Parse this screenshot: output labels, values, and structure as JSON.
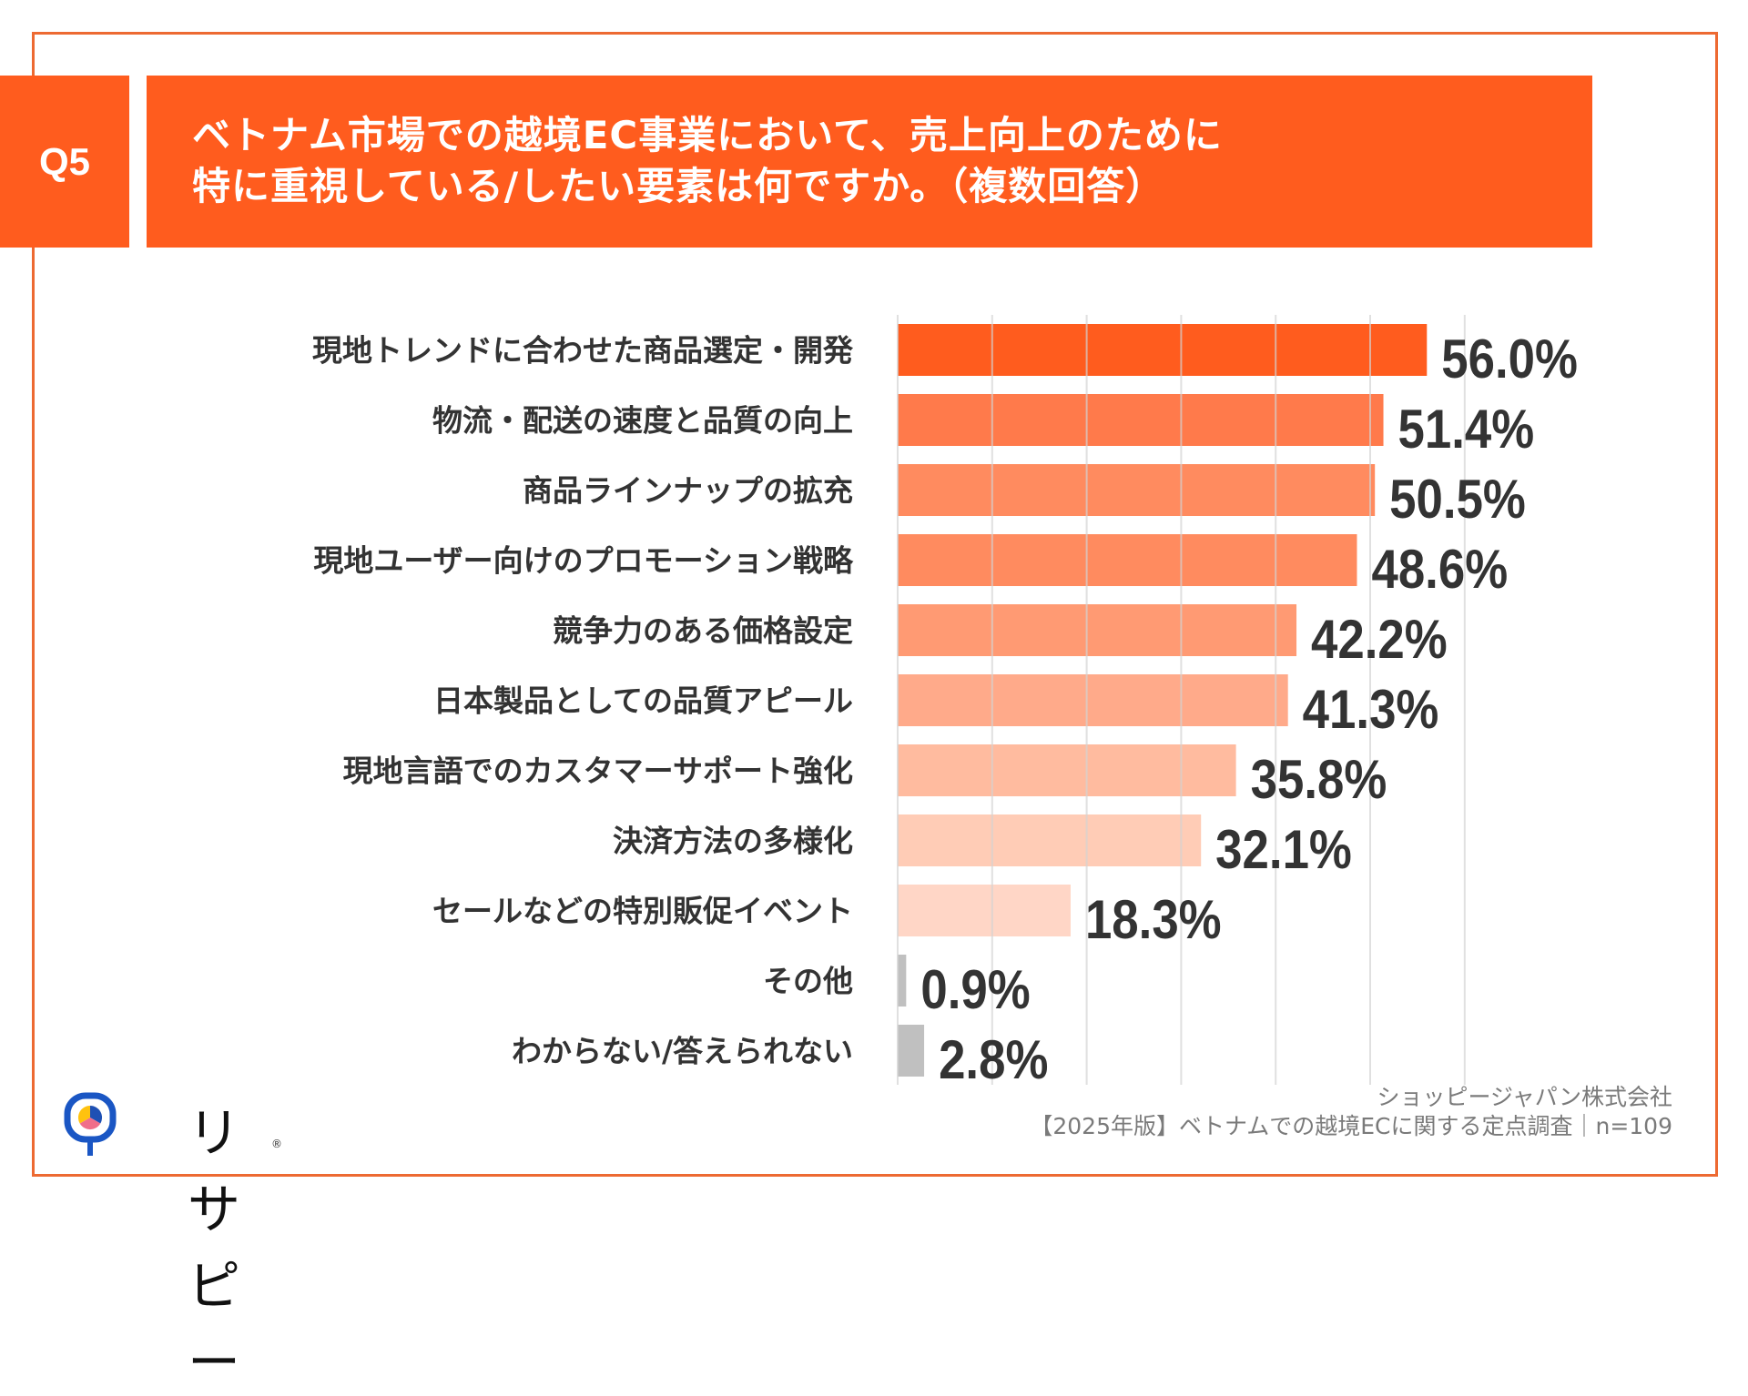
{
  "header": {
    "question_number": "Q5",
    "title_lines": [
      "ベトナム市場での越境EC事業において、売上向上のために",
      "特に重視している/したい要素は何ですか。（複数回答）"
    ]
  },
  "colors": {
    "accent": "#FF5C1E",
    "frame": "#ED6A32",
    "bars": [
      "#FF5C1E",
      "#FF7A4B",
      "#FF8B5F",
      "#FF8B5F",
      "#FF9A73",
      "#FFAA8A",
      "#FFBB9F",
      "#FFCCB6",
      "#FFD6C6",
      "#C0C0C0",
      "#C0C0C0"
    ],
    "gridline": "#D3D3D3",
    "label_text": "#333333"
  },
  "chart_data": {
    "type": "bar",
    "orientation": "horizontal",
    "title": "ベトナム市場での越境EC事業において、売上向上のために特に重視している/したい要素は何ですか。（複数回答）",
    "xlabel": "",
    "ylabel": "",
    "xlim": [
      0,
      60
    ],
    "grid": true,
    "grid_step": 10,
    "unit": "%",
    "categories": [
      "現地トレンドに合わせた商品選定・開発",
      "物流・配送の速度と品質の向上",
      "商品ラインナップの拡充",
      "現地ユーザー向けのプロモーション戦略",
      "競争力のある価格設定",
      "日本製品としての品質アピール",
      "現地言語でのカスタマーサポート強化",
      "決済方法の多様化",
      "セールなどの特別販促イベント",
      "その他",
      "わからない/答えられない"
    ],
    "values": [
      56.0,
      51.4,
      50.5,
      48.6,
      42.2,
      41.3,
      35.8,
      32.1,
      18.3,
      0.9,
      2.8
    ],
    "value_labels": [
      "56.0%",
      "51.4%",
      "50.5%",
      "48.6%",
      "42.2%",
      "41.3%",
      "35.8%",
      "32.1%",
      "18.3%",
      "0.9%",
      "2.8%"
    ]
  },
  "logo": {
    "text": "リサピー",
    "mark": "®",
    "icon": "magnifier-pie-icon"
  },
  "footer": {
    "company": "ショッピージャパン株式会社",
    "survey": "【2025年版】ベトナムでの越境ECに関する定点調査｜n=109"
  }
}
